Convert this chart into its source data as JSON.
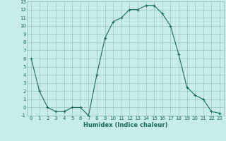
{
  "x": [
    0,
    1,
    2,
    3,
    4,
    5,
    6,
    7,
    8,
    9,
    10,
    11,
    12,
    13,
    14,
    15,
    16,
    17,
    18,
    19,
    20,
    21,
    22,
    23
  ],
  "y": [
    6,
    2,
    0,
    -0.5,
    -0.5,
    0,
    0,
    -1,
    4,
    8.5,
    10.5,
    11,
    12,
    12,
    12.5,
    12.5,
    11.5,
    10,
    6.5,
    2.5,
    1.5,
    1,
    -0.5,
    -0.7
  ],
  "xlabel": "Humidex (Indice chaleur)",
  "line_color": "#1a6b5e",
  "marker": "+",
  "bg_color": "#c8ece8",
  "grid_color": "#8bbfba",
  "ylim": [
    -1,
    13
  ],
  "xlim": [
    -0.5,
    23.5
  ],
  "yticks": [
    -1,
    0,
    1,
    2,
    3,
    4,
    5,
    6,
    7,
    8,
    9,
    10,
    11,
    12,
    13
  ],
  "xticks": [
    0,
    1,
    2,
    3,
    4,
    5,
    6,
    7,
    8,
    9,
    10,
    11,
    12,
    13,
    14,
    15,
    16,
    17,
    18,
    19,
    20,
    21,
    22,
    23
  ],
  "tick_fontsize": 5.0,
  "xlabel_fontsize": 6.0,
  "linewidth": 0.8,
  "markersize": 3.5
}
